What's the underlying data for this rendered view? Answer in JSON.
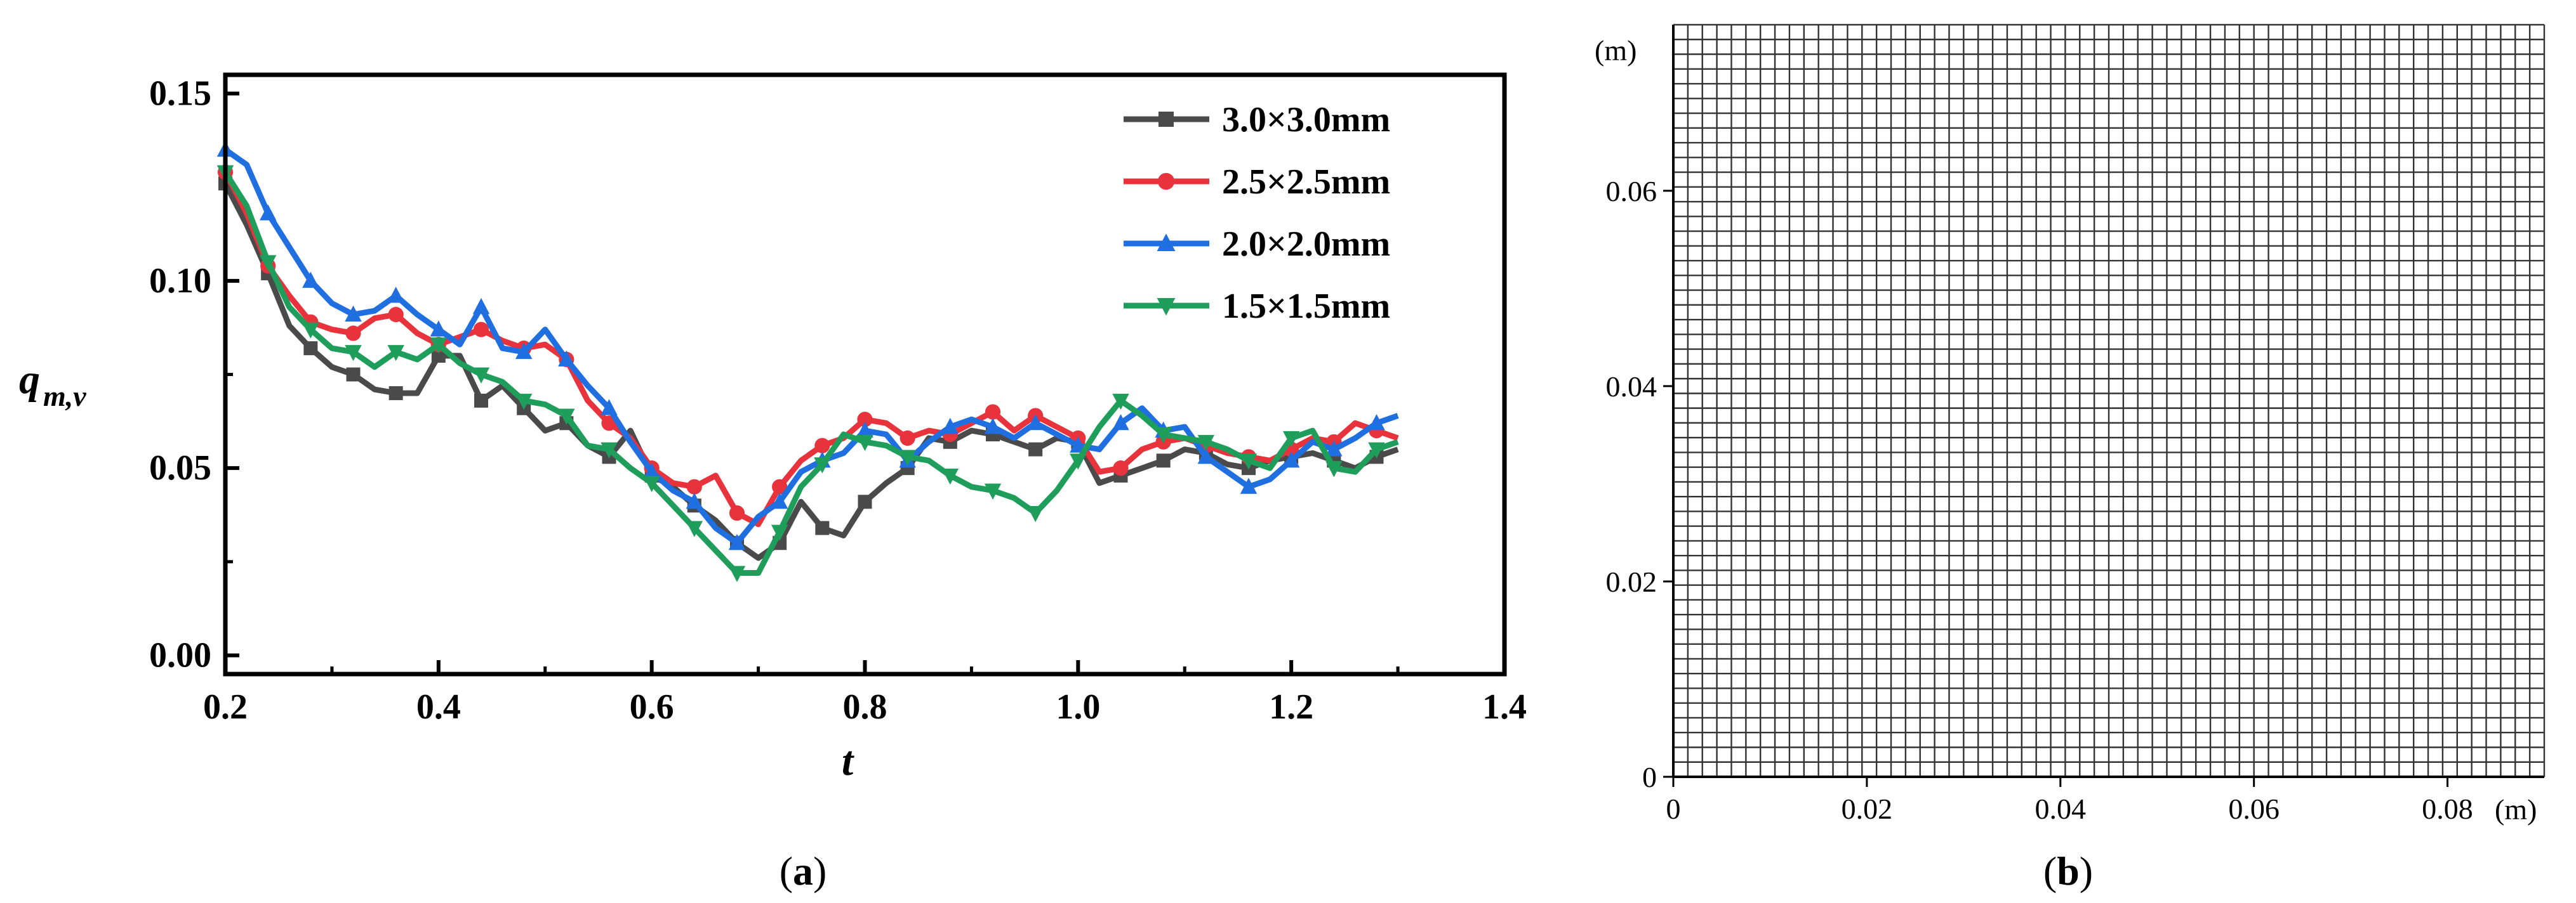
{
  "chart_data": [
    {
      "type": "line",
      "panel": "a",
      "caption": {
        "open": "(",
        "letter": "a",
        "close": ")"
      },
      "title": "",
      "xlabel": "t",
      "ylabel": {
        "main": "q",
        "sub": "m,v"
      },
      "xlim": [
        0.2,
        1.4
      ],
      "ylim": [
        -0.005,
        0.155
      ],
      "xticks": [
        0.2,
        0.4,
        0.6,
        0.8,
        1.0,
        1.2,
        1.4
      ],
      "xtick_labels": [
        "0.2",
        "0.4",
        "0.6",
        "0.8",
        "1.0",
        "1.2",
        "1.4"
      ],
      "yticks": [
        0.0,
        0.05,
        0.1,
        0.15
      ],
      "ytick_labels": [
        "0.00",
        "0.05",
        "0.10",
        "0.15"
      ],
      "grid": false,
      "legend_position": "top-right",
      "series": [
        {
          "name": "3.0×3.0mm",
          "color": "#4a4a4a",
          "marker": "square",
          "x": [
            0.2,
            0.22,
            0.24,
            0.26,
            0.28,
            0.3,
            0.32,
            0.34,
            0.36,
            0.38,
            0.4,
            0.42,
            0.44,
            0.46,
            0.48,
            0.5,
            0.52,
            0.54,
            0.56,
            0.58,
            0.6,
            0.62,
            0.64,
            0.66,
            0.68,
            0.7,
            0.72,
            0.74,
            0.76,
            0.78,
            0.8,
            0.82,
            0.84,
            0.86,
            0.88,
            0.9,
            0.92,
            0.94,
            0.96,
            0.98,
            1.0,
            1.02,
            1.04,
            1.06,
            1.08,
            1.1,
            1.12,
            1.14,
            1.16,
            1.18,
            1.2,
            1.22,
            1.24,
            1.26,
            1.28,
            1.3
          ],
          "y": [
            0.126,
            0.115,
            0.102,
            0.088,
            0.082,
            0.077,
            0.075,
            0.071,
            0.07,
            0.07,
            0.08,
            0.08,
            0.068,
            0.072,
            0.066,
            0.06,
            0.062,
            0.056,
            0.053,
            0.06,
            0.048,
            0.045,
            0.04,
            0.036,
            0.03,
            0.026,
            0.03,
            0.041,
            0.034,
            0.032,
            0.041,
            0.046,
            0.05,
            0.058,
            0.057,
            0.06,
            0.059,
            0.057,
            0.055,
            0.058,
            0.057,
            0.046,
            0.048,
            0.05,
            0.052,
            0.055,
            0.054,
            0.051,
            0.05,
            0.052,
            0.053,
            0.054,
            0.052,
            0.05,
            0.053,
            0.055
          ]
        },
        {
          "name": "2.5×2.5mm",
          "color": "#e8333d",
          "marker": "circle",
          "x": [
            0.2,
            0.22,
            0.24,
            0.26,
            0.28,
            0.3,
            0.32,
            0.34,
            0.36,
            0.38,
            0.4,
            0.42,
            0.44,
            0.46,
            0.48,
            0.5,
            0.52,
            0.54,
            0.56,
            0.58,
            0.6,
            0.62,
            0.64,
            0.66,
            0.68,
            0.7,
            0.72,
            0.74,
            0.76,
            0.78,
            0.8,
            0.82,
            0.84,
            0.86,
            0.88,
            0.9,
            0.92,
            0.94,
            0.96,
            0.98,
            1.0,
            1.02,
            1.04,
            1.06,
            1.08,
            1.1,
            1.12,
            1.14,
            1.16,
            1.18,
            1.2,
            1.22,
            1.24,
            1.26,
            1.28,
            1.3
          ],
          "y": [
            0.129,
            0.118,
            0.104,
            0.096,
            0.089,
            0.087,
            0.086,
            0.09,
            0.091,
            0.086,
            0.083,
            0.085,
            0.087,
            0.084,
            0.082,
            0.083,
            0.079,
            0.068,
            0.062,
            0.058,
            0.05,
            0.046,
            0.045,
            0.048,
            0.038,
            0.035,
            0.045,
            0.052,
            0.056,
            0.058,
            0.063,
            0.062,
            0.058,
            0.06,
            0.059,
            0.062,
            0.065,
            0.06,
            0.064,
            0.061,
            0.058,
            0.049,
            0.05,
            0.055,
            0.057,
            0.058,
            0.056,
            0.054,
            0.053,
            0.052,
            0.055,
            0.058,
            0.057,
            0.062,
            0.06,
            0.058
          ]
        },
        {
          "name": "2.0×2.0mm",
          "color": "#1f6fe0",
          "marker": "triangle",
          "x": [
            0.2,
            0.22,
            0.24,
            0.26,
            0.28,
            0.3,
            0.32,
            0.34,
            0.36,
            0.38,
            0.4,
            0.42,
            0.44,
            0.46,
            0.48,
            0.5,
            0.52,
            0.54,
            0.56,
            0.58,
            0.6,
            0.62,
            0.64,
            0.66,
            0.68,
            0.7,
            0.72,
            0.74,
            0.76,
            0.78,
            0.8,
            0.82,
            0.84,
            0.86,
            0.88,
            0.9,
            0.92,
            0.94,
            0.96,
            0.98,
            1.0,
            1.02,
            1.04,
            1.06,
            1.08,
            1.1,
            1.12,
            1.14,
            1.16,
            1.18,
            1.2,
            1.22,
            1.24,
            1.26,
            1.28,
            1.3
          ],
          "y": [
            0.135,
            0.131,
            0.118,
            0.109,
            0.1,
            0.094,
            0.091,
            0.092,
            0.096,
            0.091,
            0.087,
            0.083,
            0.093,
            0.082,
            0.081,
            0.087,
            0.079,
            0.072,
            0.066,
            0.057,
            0.049,
            0.044,
            0.041,
            0.034,
            0.03,
            0.037,
            0.041,
            0.049,
            0.052,
            0.054,
            0.06,
            0.059,
            0.052,
            0.057,
            0.061,
            0.063,
            0.061,
            0.058,
            0.062,
            0.059,
            0.056,
            0.055,
            0.062,
            0.066,
            0.06,
            0.061,
            0.053,
            0.049,
            0.045,
            0.047,
            0.052,
            0.057,
            0.055,
            0.058,
            0.062,
            0.064
          ]
        },
        {
          "name": "1.5×1.5mm",
          "color": "#1e9e5a",
          "marker": "triangle-down",
          "x": [
            0.2,
            0.22,
            0.24,
            0.26,
            0.28,
            0.3,
            0.32,
            0.34,
            0.36,
            0.38,
            0.4,
            0.42,
            0.44,
            0.46,
            0.48,
            0.5,
            0.52,
            0.54,
            0.56,
            0.58,
            0.6,
            0.62,
            0.64,
            0.66,
            0.68,
            0.7,
            0.72,
            0.74,
            0.76,
            0.78,
            0.8,
            0.82,
            0.84,
            0.86,
            0.88,
            0.9,
            0.92,
            0.94,
            0.96,
            0.98,
            1.0,
            1.02,
            1.04,
            1.06,
            1.08,
            1.1,
            1.12,
            1.14,
            1.16,
            1.18,
            1.2,
            1.22,
            1.24,
            1.26,
            1.28,
            1.3
          ],
          "y": [
            0.129,
            0.12,
            0.105,
            0.093,
            0.087,
            0.082,
            0.081,
            0.077,
            0.081,
            0.079,
            0.083,
            0.078,
            0.075,
            0.073,
            0.068,
            0.067,
            0.064,
            0.056,
            0.055,
            0.05,
            0.046,
            0.04,
            0.034,
            0.028,
            0.022,
            0.022,
            0.033,
            0.045,
            0.051,
            0.059,
            0.057,
            0.056,
            0.053,
            0.052,
            0.048,
            0.045,
            0.044,
            0.042,
            0.038,
            0.044,
            0.052,
            0.061,
            0.068,
            0.064,
            0.059,
            0.058,
            0.057,
            0.055,
            0.052,
            0.05,
            0.058,
            0.06,
            0.05,
            0.049,
            0.055,
            0.057
          ]
        }
      ]
    },
    {
      "type": "grid",
      "panel": "b",
      "caption": {
        "open": "(",
        "letter": "b",
        "close": ")"
      },
      "title": "",
      "x_unit": "(m)",
      "y_unit": "(m)",
      "xlim": [
        0,
        0.09
      ],
      "ylim": [
        0,
        0.077
      ],
      "cell_size": 0.0015,
      "xticks": [
        0,
        0.02,
        0.04,
        0.06,
        0.08
      ],
      "xtick_labels": [
        "0",
        "0.02",
        "0.04",
        "0.06",
        "0.08"
      ],
      "yticks": [
        0,
        0.02,
        0.04,
        0.06
      ],
      "ytick_labels": [
        "0",
        "0.02",
        "0.04",
        "0.06"
      ]
    }
  ]
}
